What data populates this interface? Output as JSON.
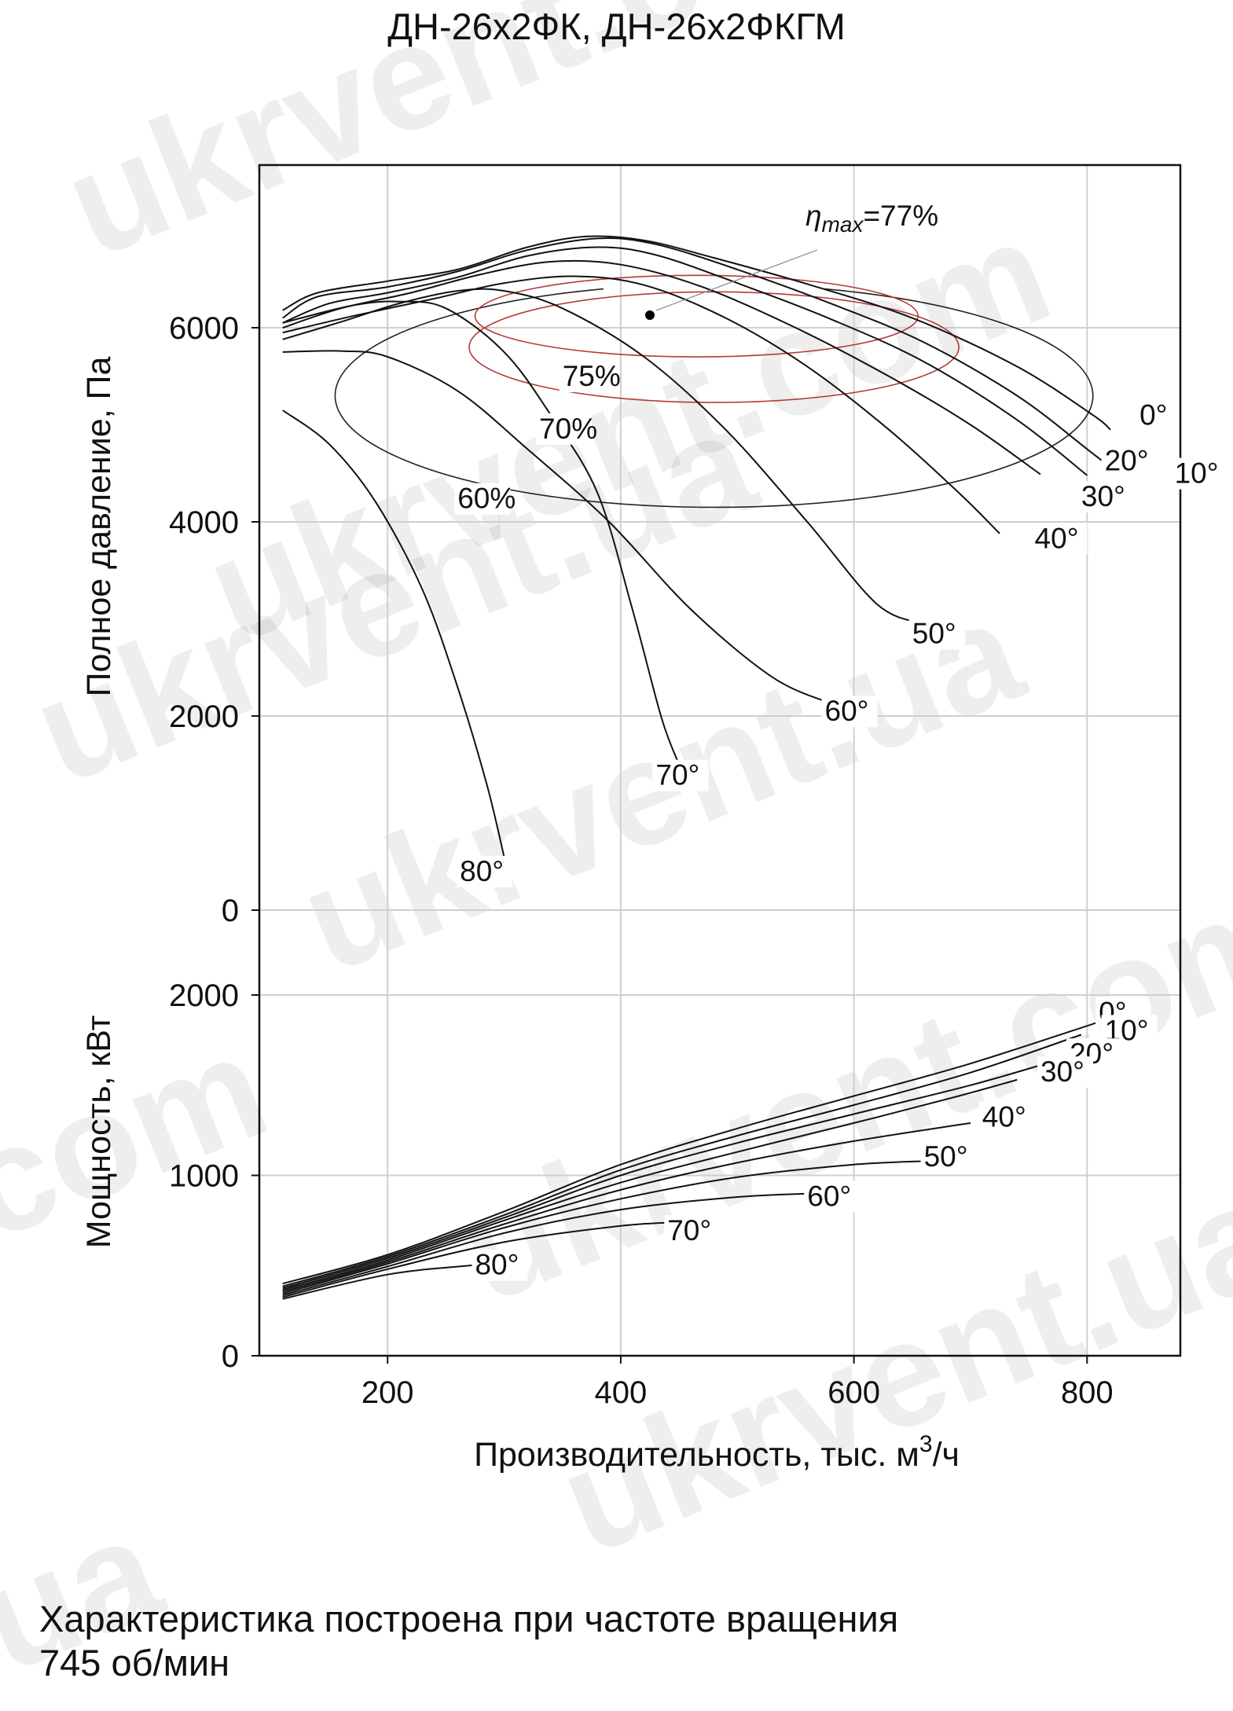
{
  "title": "ДН-26х2ФК, ДН-26х2ФКГМ",
  "footnote": {
    "line1": "Характеристика построена при частоте вращения",
    "line2": "745 об/мин"
  },
  "watermark": {
    "text": "ukrvent.com.ua",
    "parts": [
      "ukrvent.com",
      "ukrvent.ua",
      "ukrvent.com",
      "ukrvent.ua",
      "ukrvent.com",
      "ukrvent.ua",
      ".com",
      ".ua"
    ]
  },
  "colors": {
    "curves": "#111111",
    "efficiency": "#b33a3a",
    "grid": "#cfcfcf",
    "point": "#000000"
  },
  "chart_data": [
    {
      "type": "line",
      "name": "pressure",
      "ylabel": "Полное давление, Па",
      "ylim": [
        0,
        7500
      ],
      "xlim": [
        90,
        880
      ],
      "yticks": [
        0,
        2000,
        4000,
        6000
      ],
      "grid": true,
      "annotation": {
        "text_eta": "η",
        "text_sub": "max",
        "text_val": "=77%",
        "point": [
          425,
          6130
        ]
      },
      "series": [
        {
          "name": "0°",
          "label": "0°",
          "label_at": [
            845,
            5000
          ],
          "points": [
            [
              110,
              6180
            ],
            [
              140,
              6360
            ],
            [
              200,
              6480
            ],
            [
              260,
              6600
            ],
            [
              320,
              6830
            ],
            [
              370,
              6940
            ],
            [
              420,
              6900
            ],
            [
              480,
              6720
            ],
            [
              560,
              6450
            ],
            [
              650,
              6100
            ],
            [
              740,
              5600
            ],
            [
              805,
              5100
            ],
            [
              820,
              4950
            ]
          ]
        },
        {
          "name": "10°",
          "label": "10°",
          "label_at": [
            875,
            4400
          ],
          "points": [
            [
              110,
              6100
            ],
            [
              140,
              6320
            ],
            [
              200,
              6420
            ],
            [
              260,
              6580
            ],
            [
              320,
              6800
            ],
            [
              380,
              6920
            ],
            [
              430,
              6860
            ],
            [
              500,
              6600
            ],
            [
              580,
              6250
            ],
            [
              660,
              5850
            ],
            [
              740,
              5300
            ],
            [
              800,
              4750
            ],
            [
              820,
              4560
            ]
          ]
        },
        {
          "name": "20°",
          "label": "20°",
          "label_at": [
            815,
            4530
          ],
          "points": [
            [
              110,
              6050
            ],
            [
              150,
              6250
            ],
            [
              200,
              6360
            ],
            [
              260,
              6520
            ],
            [
              320,
              6740
            ],
            [
              380,
              6830
            ],
            [
              430,
              6750
            ],
            [
              500,
              6460
            ],
            [
              580,
              6090
            ],
            [
              660,
              5650
            ],
            [
              740,
              5050
            ],
            [
              800,
              4480
            ]
          ]
        },
        {
          "name": "30°",
          "label": "30°",
          "label_at": [
            795,
            4160
          ],
          "points": [
            [
              110,
              6000
            ],
            [
              160,
              6200
            ],
            [
              220,
              6360
            ],
            [
              280,
              6550
            ],
            [
              340,
              6680
            ],
            [
              400,
              6650
            ],
            [
              470,
              6420
            ],
            [
              550,
              6000
            ],
            [
              630,
              5500
            ],
            [
              700,
              5000
            ],
            [
              760,
              4490
            ]
          ]
        },
        {
          "name": "40°",
          "label": "40°",
          "label_at": [
            755,
            3730
          ],
          "points": [
            [
              110,
              5950
            ],
            [
              170,
              6120
            ],
            [
              240,
              6300
            ],
            [
              300,
              6460
            ],
            [
              360,
              6530
            ],
            [
              420,
              6440
            ],
            [
              490,
              6100
            ],
            [
              560,
              5600
            ],
            [
              630,
              4950
            ],
            [
              690,
              4300
            ],
            [
              725,
              3880
            ]
          ]
        },
        {
          "name": "50°",
          "label": "50°",
          "label_at": [
            650,
            2750
          ],
          "points": [
            [
              110,
              5880
            ],
            [
              160,
              6060
            ],
            [
              210,
              6250
            ],
            [
              260,
              6380
            ],
            [
              300,
              6380
            ],
            [
              350,
              6200
            ],
            [
              420,
              5700
            ],
            [
              490,
              4950
            ],
            [
              560,
              4000
            ],
            [
              620,
              3150
            ],
            [
              660,
              2950
            ]
          ]
        },
        {
          "name": "60°",
          "label": "60°",
          "label_at": [
            575,
            1950
          ],
          "points": [
            [
              110,
              5750
            ],
            [
              160,
              5760
            ],
            [
              200,
              5700
            ],
            [
              260,
              5350
            ],
            [
              320,
              4750
            ],
            [
              390,
              4000
            ],
            [
              460,
              3100
            ],
            [
              530,
              2400
            ],
            [
              580,
              2130
            ]
          ]
        },
        {
          "name": "70°",
          "label": "70°",
          "label_at": [
            430,
            1290
          ],
          "points": [
            [
              110,
              6050
            ],
            [
              170,
              6230
            ],
            [
              210,
              6270
            ],
            [
              250,
              6200
            ],
            [
              300,
              5750
            ],
            [
              340,
              5100
            ],
            [
              380,
              4300
            ],
            [
              410,
              3100
            ],
            [
              435,
              1980
            ],
            [
              450,
              1500
            ]
          ]
        },
        {
          "name": "80°",
          "label": "80°",
          "label_at": [
            262,
            300
          ],
          "points": [
            [
              110,
              5150
            ],
            [
              150,
              4800
            ],
            [
              190,
              4200
            ],
            [
              230,
              3300
            ],
            [
              260,
              2300
            ],
            [
              285,
              1300
            ],
            [
              300,
              550
            ]
          ]
        }
      ],
      "efficiency": [
        {
          "name": "60%",
          "label": "60%",
          "label_at": [
            260,
            4140
          ],
          "center": [
            480,
            5300
          ],
          "radii": [
            325,
            1150
          ],
          "cut": true
        },
        {
          "name": "70%",
          "label": "70%",
          "label_at": [
            330,
            4860
          ],
          "center": [
            480,
            5800
          ],
          "radii": [
            210,
            570
          ],
          "cut": false
        },
        {
          "name": "75%",
          "label": "75%",
          "label_at": [
            350,
            5400
          ],
          "center": [
            465,
            6120
          ],
          "radii": [
            190,
            420
          ],
          "cut": false
        }
      ]
    },
    {
      "type": "line",
      "name": "power",
      "ylabel": "Мощность, кВт",
      "xlabel": "Производительность, тыс. м³/ч",
      "xlabel_main": "Производительность, тыс. м",
      "xlabel_sup": "3",
      "xlabel_tail": "/ч",
      "ylim": [
        0,
        2000
      ],
      "yticks": [
        0,
        1000,
        2000
      ],
      "xticks": [
        200,
        400,
        600,
        800
      ],
      "grid": true,
      "series": [
        {
          "name": "0°",
          "label": "0°",
          "label_at": [
            810,
            1850
          ],
          "points": [
            [
              110,
              400
            ],
            [
              200,
              560
            ],
            [
              300,
              800
            ],
            [
              400,
              1060
            ],
            [
              500,
              1260
            ],
            [
              600,
              1440
            ],
            [
              700,
              1620
            ],
            [
              810,
              1850
            ]
          ]
        },
        {
          "name": "10°",
          "label": "10°",
          "label_at": [
            815,
            1750
          ],
          "points": [
            [
              110,
              385
            ],
            [
              200,
              550
            ],
            [
              300,
              780
            ],
            [
              400,
              1030
            ],
            [
              500,
              1220
            ],
            [
              600,
              1390
            ],
            [
              700,
              1570
            ],
            [
              795,
              1780
            ]
          ]
        },
        {
          "name": "20°",
          "label": "20°",
          "label_at": [
            785,
            1620
          ],
          "points": [
            [
              110,
              375
            ],
            [
              200,
              540
            ],
            [
              300,
              765
            ],
            [
              400,
              1000
            ],
            [
              500,
              1180
            ],
            [
              600,
              1340
            ],
            [
              700,
              1500
            ],
            [
              770,
              1630
            ]
          ]
        },
        {
          "name": "30°",
          "label": "30°",
          "label_at": [
            760,
            1520
          ],
          "points": [
            [
              110,
              365
            ],
            [
              200,
              530
            ],
            [
              300,
              750
            ],
            [
              400,
              960
            ],
            [
              500,
              1130
            ],
            [
              600,
              1290
            ],
            [
              690,
              1440
            ],
            [
              740,
              1530
            ]
          ]
        },
        {
          "name": "40°",
          "label": "40°",
          "label_at": [
            710,
            1270
          ],
          "points": [
            [
              110,
              355
            ],
            [
              200,
              520
            ],
            [
              300,
              730
            ],
            [
              400,
              920
            ],
            [
              500,
              1070
            ],
            [
              600,
              1190
            ],
            [
              700,
              1290
            ]
          ]
        },
        {
          "name": "50°",
          "label": "50°",
          "label_at": [
            660,
            1050
          ],
          "points": [
            [
              110,
              345
            ],
            [
              200,
              510
            ],
            [
              300,
              710
            ],
            [
              400,
              870
            ],
            [
              500,
              990
            ],
            [
              600,
              1060
            ],
            [
              665,
              1080
            ]
          ]
        },
        {
          "name": "60°",
          "label": "60°",
          "label_at": [
            560,
            830
          ],
          "points": [
            [
              110,
              335
            ],
            [
              200,
              495
            ],
            [
              300,
              680
            ],
            [
              400,
              810
            ],
            [
              500,
              880
            ],
            [
              565,
              900
            ]
          ]
        },
        {
          "name": "70°",
          "label": "70°",
          "label_at": [
            440,
            640
          ],
          "points": [
            [
              110,
              325
            ],
            [
              200,
              480
            ],
            [
              300,
              630
            ],
            [
              400,
              720
            ],
            [
              450,
              740
            ]
          ]
        },
        {
          "name": "80°",
          "label": "80°",
          "label_at": [
            275,
            450
          ],
          "points": [
            [
              110,
              315
            ],
            [
              200,
              450
            ],
            [
              270,
              500
            ],
            [
              300,
              520
            ]
          ]
        }
      ]
    }
  ]
}
